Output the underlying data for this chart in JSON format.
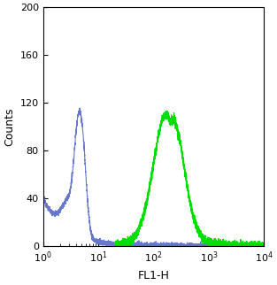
{
  "title": "",
  "xlabel": "FL1-H",
  "ylabel": "Counts",
  "xlim_log": [
    1,
    10000
  ],
  "ylim": [
    0,
    200
  ],
  "yticks": [
    0,
    40,
    80,
    120,
    160,
    200
  ],
  "background_color": "#ffffff",
  "blue_color": "#6677cc",
  "green_color": "#00dd00",
  "xlabel_fontsize": 9,
  "ylabel_fontsize": 9,
  "tick_fontsize": 8,
  "figsize": [
    3.13,
    3.22
  ],
  "dpi": 100
}
